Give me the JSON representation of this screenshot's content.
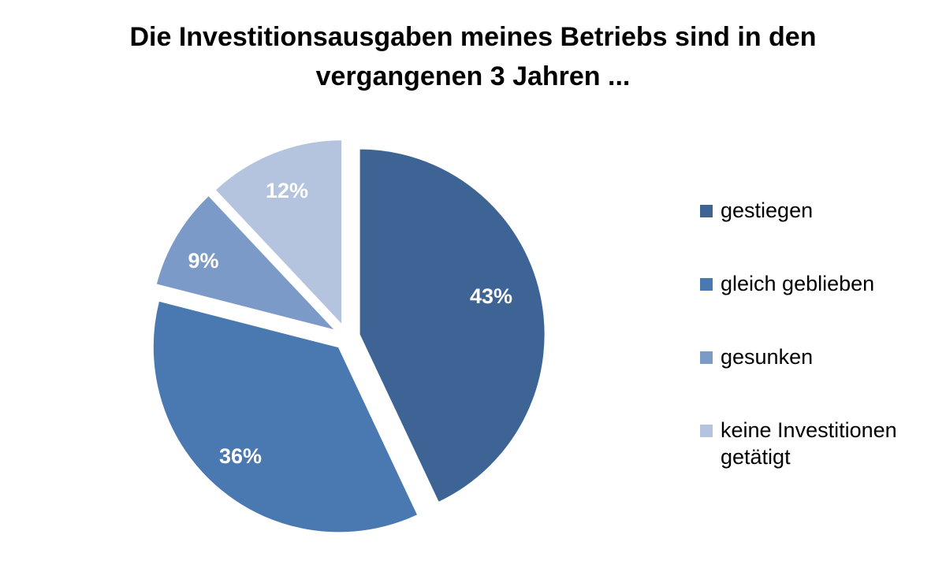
{
  "chart_data": {
    "type": "pie",
    "title": "Die Investitionsausgaben meines Betriebs sind in den vergangenen 3 Jahren ...",
    "title_lines": [
      "Die Investitionsausgaben meines Betriebs sind in den",
      "vergangenen 3 Jahren ..."
    ],
    "slices": [
      {
        "label": "gestiegen",
        "value": 43,
        "display": "43%",
        "color": "#3d6495"
      },
      {
        "label": "gleich geblieben",
        "value": 36,
        "display": "36%",
        "color": "#4a78b0"
      },
      {
        "label": "gesunken",
        "value": 9,
        "display": "9%",
        "color": "#7c9ac8"
      },
      {
        "label": "keine Investitionen getätigt",
        "value": 12,
        "display": "12%",
        "color": "#b4c3de"
      }
    ],
    "legend_items": [
      {
        "lines": [
          "gestiegen"
        ],
        "color": "#3d6495"
      },
      {
        "lines": [
          "gleich geblieben"
        ],
        "color": "#4a78b0"
      },
      {
        "lines": [
          "gesunken"
        ],
        "color": "#7c9ac8"
      },
      {
        "lines": [
          "keine Investitionen",
          "getätigt"
        ],
        "color": "#b4c3de"
      }
    ],
    "legend_position": "right",
    "exploded": true
  }
}
